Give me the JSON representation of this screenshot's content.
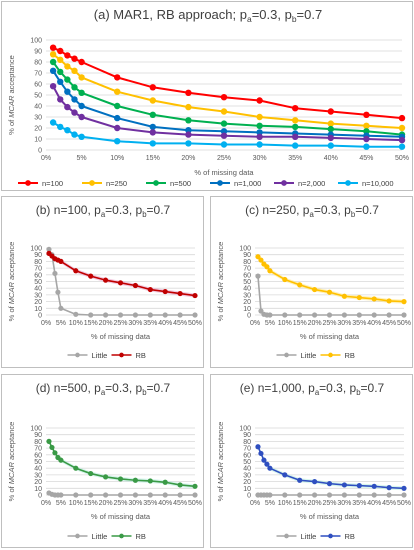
{
  "chart_data": [
    {
      "type": "line",
      "title": "(a) MAR1, RB approach; p",
      "title_parts": [
        "(a) MAR1, RB approach; p",
        "a",
        "=0.3, p",
        "b",
        "=0.7"
      ],
      "xlabel": "% of missing data",
      "ylabel_parts": [
        "% of ",
        "MCAR",
        " acceptance"
      ],
      "xticks": [
        "0%",
        "5%",
        "10%",
        "15%",
        "20%",
        "25%",
        "30%",
        "35%",
        "40%",
        "45%",
        "50%"
      ],
      "ylim": [
        0,
        100
      ],
      "yticks": [
        "0",
        "10",
        "20",
        "30",
        "40",
        "50",
        "60",
        "70",
        "80",
        "90",
        "100"
      ],
      "x": [
        1,
        2,
        3,
        4,
        5,
        10,
        15,
        20,
        25,
        30,
        35,
        40,
        45,
        50
      ],
      "legend_position": "bottom",
      "series": [
        {
          "name": "n=100",
          "color": "#ff0000",
          "values": [
            93,
            90,
            86,
            83,
            80,
            66,
            57,
            52,
            48,
            45,
            38,
            35,
            32,
            29
          ]
        },
        {
          "name": "n=250",
          "color": "#ffc000",
          "values": [
            87,
            82,
            76,
            72,
            66,
            53,
            45,
            39,
            35,
            30,
            27,
            24,
            22,
            20
          ]
        },
        {
          "name": "n=500",
          "color": "#00b050",
          "values": [
            80,
            71,
            64,
            57,
            52,
            40,
            32,
            27,
            24,
            22,
            21,
            19,
            17,
            14
          ]
        },
        {
          "name": "n=1,000",
          "color": "#0070c0",
          "values": [
            72,
            62,
            53,
            46,
            40,
            29,
            21,
            18,
            17,
            16,
            15,
            14,
            13,
            12
          ]
        },
        {
          "name": "n=2,000",
          "color": "#7030a0",
          "values": [
            58,
            46,
            39,
            34,
            30,
            20,
            16,
            14,
            13,
            12,
            12,
            11,
            10,
            9
          ]
        },
        {
          "name": "n=10,000",
          "color": "#00b0f0",
          "values": [
            25,
            21,
            18,
            14,
            12,
            8,
            6,
            6,
            5,
            5,
            4,
            4,
            3,
            3
          ]
        }
      ]
    },
    {
      "type": "line",
      "title_parts": [
        "(b) n=100, p",
        "a",
        "=0.3, p",
        "b",
        "=0.7"
      ],
      "xlabel": "% of missing data",
      "ylabel_parts": [
        "% of ",
        "MCAR",
        " acceptance"
      ],
      "xticks": [
        "0%",
        "5%",
        "10%",
        "15%",
        "20%",
        "25%",
        "30%",
        "35%",
        "40%",
        "45%",
        "50%"
      ],
      "ylim": [
        0,
        100
      ],
      "yticks": [
        "0",
        "10",
        "20",
        "30",
        "40",
        "50",
        "60",
        "70",
        "80",
        "90",
        "100"
      ],
      "x": [
        1,
        2,
        3,
        4,
        5,
        10,
        15,
        20,
        25,
        30,
        35,
        40,
        45,
        50
      ],
      "legend_position": "bottom",
      "band_color": "#e8a0c8",
      "series": [
        {
          "name": "Little",
          "color": "#a6a6a6",
          "values": [
            98,
            90,
            62,
            34,
            10,
            1,
            0,
            0,
            0,
            0,
            0,
            0,
            0,
            0
          ]
        },
        {
          "name": "RB",
          "color": "#c00000",
          "values": [
            92,
            88,
            84,
            82,
            80,
            66,
            58,
            52,
            48,
            44,
            38,
            35,
            32,
            29
          ]
        }
      ]
    },
    {
      "type": "line",
      "title_parts": [
        "(c) n=250, p",
        "a",
        "=0.3, p",
        "b",
        "=0.7"
      ],
      "xlabel": "% of missing data",
      "ylabel_parts": [
        "% of ",
        "MCAR",
        " acceptance"
      ],
      "xticks": [
        "0%",
        "5%",
        "10%",
        "15%",
        "20%",
        "25%",
        "30%",
        "35%",
        "40%",
        "45%",
        "50%"
      ],
      "ylim": [
        0,
        100
      ],
      "yticks": [
        "0",
        "10",
        "20",
        "30",
        "40",
        "50",
        "60",
        "70",
        "80",
        "90",
        "100"
      ],
      "x": [
        1,
        2,
        3,
        4,
        5,
        10,
        15,
        20,
        25,
        30,
        35,
        40,
        45,
        50
      ],
      "legend_position": "bottom",
      "band_color": "#ffe57f",
      "series": [
        {
          "name": "Little",
          "color": "#a6a6a6",
          "values": [
            58,
            6,
            1,
            0,
            0,
            0,
            0,
            0,
            0,
            0,
            0,
            0,
            0,
            0
          ]
        },
        {
          "name": "RB",
          "color": "#ffc000",
          "values": [
            87,
            82,
            76,
            72,
            66,
            53,
            45,
            38,
            34,
            28,
            26,
            24,
            21,
            20
          ]
        }
      ]
    },
    {
      "type": "line",
      "title_parts": [
        "(d) n=500, p",
        "a",
        "=0.3, p",
        "b",
        "=0.7"
      ],
      "xlabel": "% of missing data",
      "ylabel_parts": [
        "% of ",
        "MCAR",
        " acceptance"
      ],
      "xticks": [
        "0%",
        "5%",
        "10%",
        "15%",
        "20%",
        "25%",
        "30%",
        "35%",
        "40%",
        "45%",
        "50%"
      ],
      "ylim": [
        0,
        100
      ],
      "yticks": [
        "0",
        "10",
        "20",
        "30",
        "40",
        "50",
        "60",
        "70",
        "80",
        "90",
        "100"
      ],
      "x": [
        1,
        2,
        3,
        4,
        5,
        10,
        15,
        20,
        25,
        30,
        35,
        40,
        45,
        50
      ],
      "legend_position": "bottom",
      "band_color": "#b6ecdf",
      "series": [
        {
          "name": "Little",
          "color": "#a6a6a6",
          "values": [
            3,
            1,
            0,
            0,
            0,
            0,
            0,
            0,
            0,
            0,
            0,
            0,
            0,
            0
          ]
        },
        {
          "name": "RB",
          "color": "#3a9a46",
          "values": [
            80,
            71,
            63,
            56,
            52,
            40,
            32,
            27,
            24,
            22,
            21,
            19,
            15,
            13
          ]
        }
      ]
    },
    {
      "type": "line",
      "title_parts": [
        "(e) n=1,000, p",
        "a",
        "=0.3, p",
        "b",
        "=0.7"
      ],
      "xlabel": "% of missing data",
      "ylabel_parts": [
        "% of ",
        "MCAR",
        " acceptance"
      ],
      "xticks": [
        "0%",
        "5%",
        "10%",
        "15%",
        "20%",
        "25%",
        "30%",
        "35%",
        "40%",
        "45%",
        "50%"
      ],
      "ylim": [
        0,
        100
      ],
      "yticks": [
        "0",
        "10",
        "20",
        "30",
        "40",
        "50",
        "60",
        "70",
        "80",
        "90",
        "100"
      ],
      "x": [
        1,
        2,
        3,
        4,
        5,
        10,
        15,
        20,
        25,
        30,
        35,
        40,
        45,
        50
      ],
      "legend_position": "bottom",
      "band_color": "#b6ecdf",
      "series": [
        {
          "name": "Little",
          "color": "#a6a6a6",
          "values": [
            0,
            0,
            0,
            0,
            0,
            0,
            0,
            0,
            0,
            0,
            0,
            0,
            0,
            0
          ]
        },
        {
          "name": "RB",
          "color": "#2f4fc0",
          "values": [
            72,
            62,
            52,
            46,
            40,
            30,
            22,
            20,
            17,
            15,
            14,
            13,
            11,
            10
          ]
        }
      ]
    }
  ]
}
